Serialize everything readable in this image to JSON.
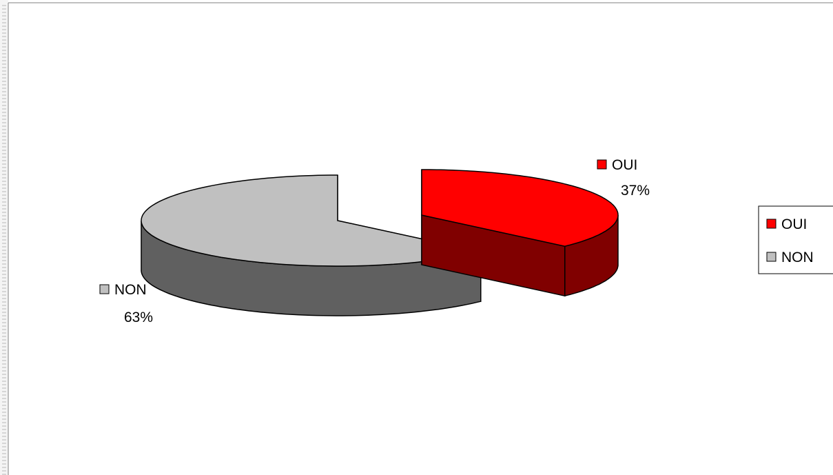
{
  "chart_data": {
    "type": "pie",
    "style": "3d-exploded",
    "slices": [
      {
        "label": "OUI",
        "value": 37,
        "percent_label": "37%",
        "color": "#ff0000",
        "side_color": "#800000"
      },
      {
        "label": "NON",
        "value": 63,
        "percent_label": "63%",
        "color": "#c0c0c0",
        "side_color": "#606060"
      }
    ],
    "legend": {
      "position": "right",
      "entries": [
        {
          "label": "OUI",
          "color": "#ff0000"
        },
        {
          "label": "NON",
          "color": "#c0c0c0"
        }
      ]
    },
    "title": ""
  }
}
